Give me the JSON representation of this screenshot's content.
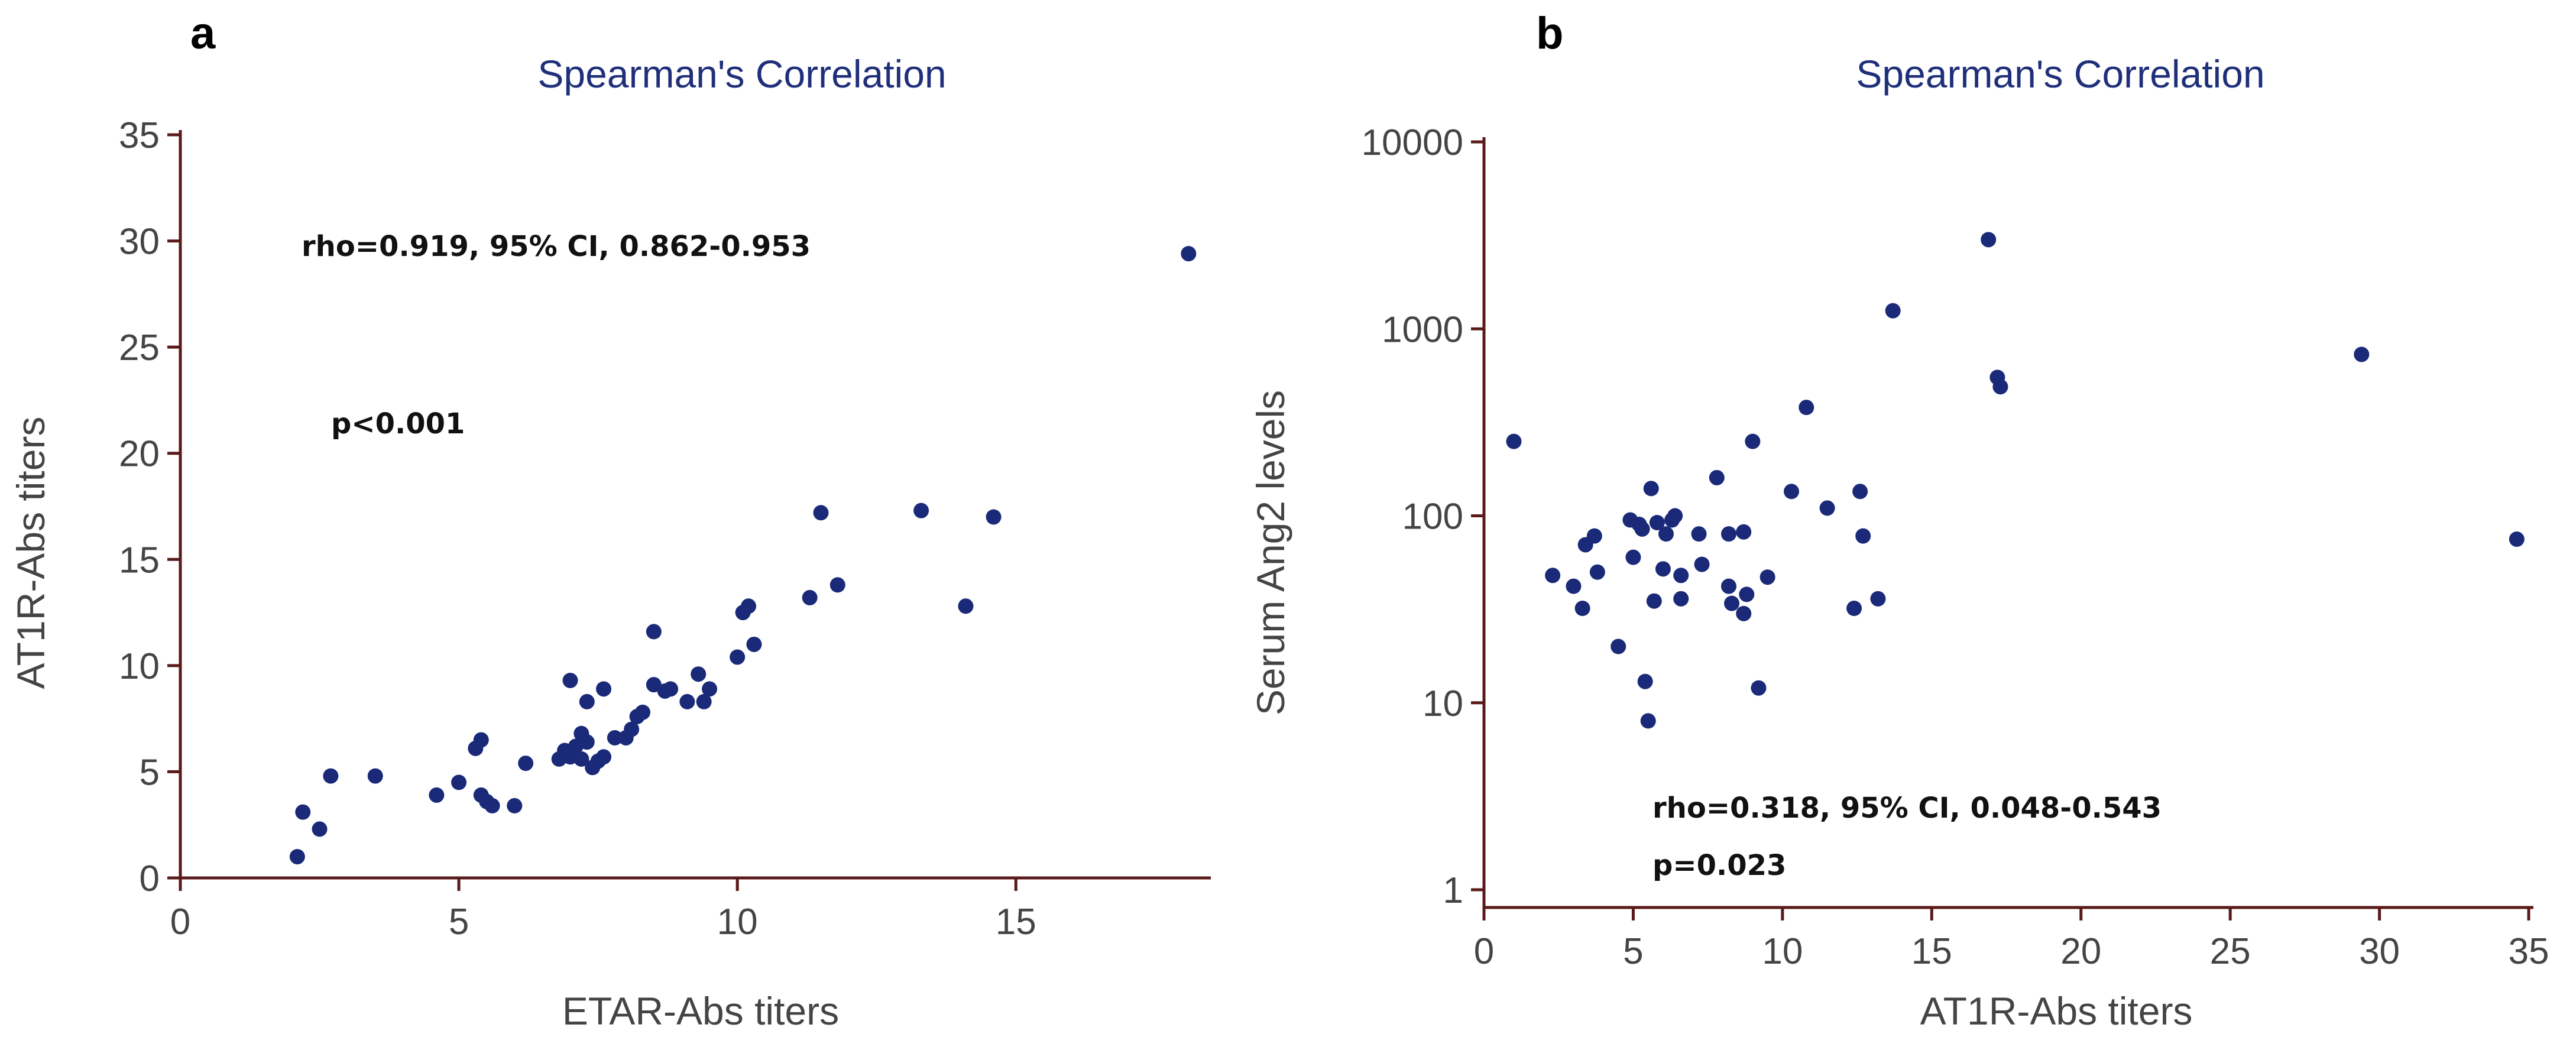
{
  "chart_data": [
    {
      "panel": "a",
      "type": "scatter",
      "title": "Spearman's Correlation",
      "xlabel": "ETAR-Abs titers",
      "ylabel": "AT1R-Abs titers",
      "xlim": [
        0,
        18.5
      ],
      "ylim": [
        0,
        35
      ],
      "xticks": [
        0,
        5,
        10,
        15
      ],
      "yticks": [
        0,
        5,
        10,
        15,
        20,
        25,
        30,
        35
      ],
      "annotations": [
        "rho=0.919, 95% CI, 0.862-0.953",
        "p<0.001"
      ],
      "points": [
        [
          2.1,
          1.0
        ],
        [
          2.2,
          3.1
        ],
        [
          2.5,
          2.3
        ],
        [
          2.7,
          4.8
        ],
        [
          3.5,
          4.8
        ],
        [
          4.6,
          3.9
        ],
        [
          5.0,
          4.5
        ],
        [
          5.3,
          6.1
        ],
        [
          5.4,
          6.5
        ],
        [
          5.4,
          3.9
        ],
        [
          5.5,
          3.6
        ],
        [
          5.6,
          3.4
        ],
        [
          6.0,
          3.4
        ],
        [
          6.2,
          5.4
        ],
        [
          6.8,
          5.6
        ],
        [
          6.9,
          6.0
        ],
        [
          7.0,
          9.3
        ],
        [
          7.0,
          5.7
        ],
        [
          7.1,
          6.2
        ],
        [
          7.2,
          5.6
        ],
        [
          7.2,
          6.8
        ],
        [
          7.3,
          8.3
        ],
        [
          7.3,
          6.4
        ],
        [
          7.4,
          5.2
        ],
        [
          7.5,
          5.5
        ],
        [
          7.6,
          8.9
        ],
        [
          7.6,
          5.7
        ],
        [
          7.8,
          6.6
        ],
        [
          8.0,
          6.6
        ],
        [
          8.1,
          7.0
        ],
        [
          8.2,
          7.6
        ],
        [
          8.3,
          7.8
        ],
        [
          8.5,
          9.1
        ],
        [
          8.5,
          11.6
        ],
        [
          8.7,
          8.8
        ],
        [
          8.8,
          8.9
        ],
        [
          9.1,
          8.3
        ],
        [
          9.3,
          9.6
        ],
        [
          9.4,
          8.3
        ],
        [
          9.5,
          8.9
        ],
        [
          10.0,
          10.4
        ],
        [
          10.1,
          12.5
        ],
        [
          10.2,
          12.8
        ],
        [
          10.3,
          11.0
        ],
        [
          11.3,
          13.2
        ],
        [
          11.5,
          17.2
        ],
        [
          11.8,
          13.8
        ],
        [
          13.3,
          17.3
        ],
        [
          14.1,
          12.8
        ],
        [
          14.6,
          17.0
        ],
        [
          18.1,
          29.4
        ]
      ]
    },
    {
      "panel": "b",
      "type": "scatter",
      "title": "Spearman's Correlation",
      "xlabel": "AT1R-Abs titers",
      "ylabel": "Serum Ang2 levels",
      "xlim": [
        0,
        35
      ],
      "ylim": [
        1,
        10000
      ],
      "yscale": "log",
      "xticks": [
        0,
        5,
        10,
        15,
        20,
        25,
        30,
        35
      ],
      "yticks": [
        1,
        10,
        100,
        1000,
        10000
      ],
      "annotations": [
        "rho=0.318, 95% CI, 0.048-0.543",
        "p=0.023"
      ],
      "points": [
        [
          1.0,
          250
        ],
        [
          2.3,
          48
        ],
        [
          3.0,
          42
        ],
        [
          3.3,
          32
        ],
        [
          3.4,
          70
        ],
        [
          3.7,
          78
        ],
        [
          3.8,
          50
        ],
        [
          4.5,
          20
        ],
        [
          4.9,
          95
        ],
        [
          5.0,
          60
        ],
        [
          5.2,
          90
        ],
        [
          5.3,
          85
        ],
        [
          5.4,
          13
        ],
        [
          5.5,
          8
        ],
        [
          5.6,
          140
        ],
        [
          5.7,
          35
        ],
        [
          5.8,
          92
        ],
        [
          6.0,
          52
        ],
        [
          6.1,
          80
        ],
        [
          6.3,
          95
        ],
        [
          6.4,
          100
        ],
        [
          6.6,
          48
        ],
        [
          6.6,
          36
        ],
        [
          7.2,
          80
        ],
        [
          7.3,
          55
        ],
        [
          7.8,
          160
        ],
        [
          8.2,
          80
        ],
        [
          8.2,
          42
        ],
        [
          8.3,
          34
        ],
        [
          8.7,
          82
        ],
        [
          8.7,
          30
        ],
        [
          8.8,
          38
        ],
        [
          9.0,
          250
        ],
        [
          9.2,
          12
        ],
        [
          9.5,
          47
        ],
        [
          10.3,
          135
        ],
        [
          10.8,
          380
        ],
        [
          11.5,
          110
        ],
        [
          12.4,
          32
        ],
        [
          12.6,
          135
        ],
        [
          12.7,
          78
        ],
        [
          13.2,
          36
        ],
        [
          13.7,
          1250
        ],
        [
          16.9,
          3000
        ],
        [
          17.2,
          550
        ],
        [
          17.3,
          490
        ],
        [
          29.4,
          730
        ],
        [
          34.6,
          75
        ]
      ]
    }
  ]
}
